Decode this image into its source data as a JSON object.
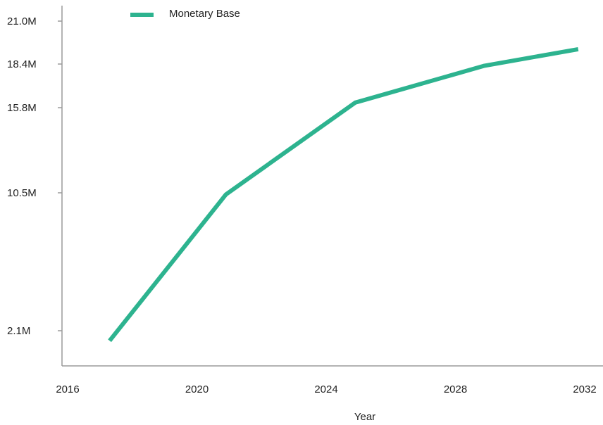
{
  "chart_data": {
    "type": "line",
    "xlabel": "Year",
    "ylabel": "",
    "x_ticks": [
      2016,
      2020,
      2024,
      2028,
      2032
    ],
    "y_ticks": [
      {
        "value": 2.1,
        "label": "2.1M"
      },
      {
        "value": 10.5,
        "label": "10.5M"
      },
      {
        "value": 15.8,
        "label": "15.8M"
      },
      {
        "value": 18.4,
        "label": "18.4M"
      },
      {
        "value": 21.0,
        "label": "21.0M"
      }
    ],
    "xlim": [
      2016,
      2032
    ],
    "y_scale": "nonlinear (tick labels unevenly spaced)",
    "grid": false,
    "legend_position": "top-left",
    "series": [
      {
        "name": "Monetary Base",
        "color": "#2db38f",
        "x": [
          2017.3,
          2020.9,
          2024.9,
          2028.9,
          2031.8
        ],
        "values": [
          1.5,
          10.4,
          16.1,
          18.3,
          19.3
        ]
      }
    ]
  }
}
